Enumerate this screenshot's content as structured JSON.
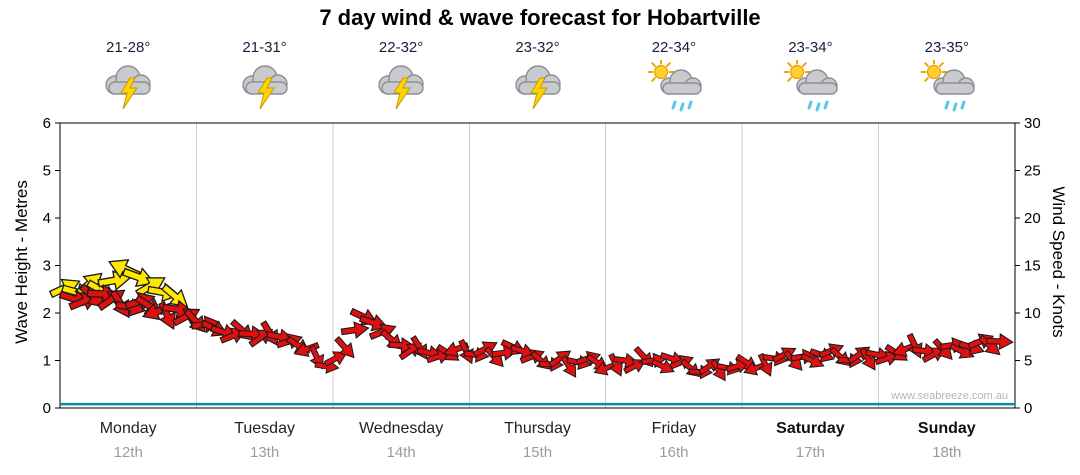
{
  "title": "7 day wind & wave forecast for Hobartville",
  "watermark": "www.seabreeze.com.au",
  "left_axis": {
    "label": "Wave Height - Metres",
    "min": 0,
    "max": 6,
    "ticks": [
      0,
      1,
      2,
      3,
      4,
      5,
      6
    ]
  },
  "right_axis": {
    "label": "Wind Speed - Knots",
    "min": 0,
    "max": 30,
    "ticks": [
      0,
      5,
      10,
      15,
      20,
      25,
      30
    ]
  },
  "days": [
    {
      "name": "Monday",
      "date": "12th",
      "temp": "21-28°",
      "icon": "storm",
      "weekend": false
    },
    {
      "name": "Tuesday",
      "date": "13th",
      "temp": "21-31°",
      "icon": "storm",
      "weekend": false
    },
    {
      "name": "Wednesday",
      "date": "14th",
      "temp": "22-32°",
      "icon": "storm",
      "weekend": false
    },
    {
      "name": "Thursday",
      "date": "15th",
      "temp": "23-32°",
      "icon": "storm",
      "weekend": false
    },
    {
      "name": "Friday",
      "date": "16th",
      "temp": "22-34°",
      "icon": "sun-shower",
      "weekend": false
    },
    {
      "name": "Saturday",
      "date": "17th",
      "temp": "23-34°",
      "icon": "sun-shower",
      "weekend": true
    },
    {
      "name": "Sunday",
      "date": "18th",
      "temp": "23-35°",
      "icon": "sun-shower",
      "weekend": true
    }
  ],
  "chart_data": {
    "type": "scatter",
    "title": "7 day wind & wave forecast for Hobartville",
    "x_axis": {
      "unit": "days",
      "range": [
        0,
        7
      ],
      "labels": [
        "Monday 12th",
        "Tuesday 13th",
        "Wednesday 14th",
        "Thursday 15th",
        "Friday 16th",
        "Saturday 17th",
        "Sunday 18th"
      ]
    },
    "y_left": {
      "label": "Wave Height - Metres",
      "range": [
        0,
        6
      ]
    },
    "y_right": {
      "label": "Wind Speed - Knots",
      "range": [
        0,
        30
      ]
    },
    "wave_height_m": 0.05,
    "wind_series": [
      {
        "name": "monday-stronger-gusts",
        "color": "#ffe800",
        "x_start": 0.03,
        "x_step": 0.09,
        "knots": [
          12.6,
          12.2,
          13.0,
          12.4,
          13.4,
          14.6,
          13.8,
          12.8,
          12.2,
          11.8
        ],
        "dirs_cycle": [
          -25,
          15,
          -40,
          30,
          -10,
          205,
          20,
          -30,
          10,
          40
        ]
      },
      {
        "name": "main-wind-trend",
        "color": "#e01010",
        "x_start": 0.1,
        "x_step": 0.0685,
        "knots": [
          11.5,
          11.2,
          11.8,
          12.0,
          11.4,
          11.0,
          10.6,
          11.2,
          10.8,
          10.2,
          9.8,
          10.4,
          9.6,
          9.2,
          8.8,
          8.4,
          8.0,
          7.6,
          8.2,
          7.8,
          7.4,
          7.9,
          7.5,
          7.0,
          6.6,
          6.2,
          5.4,
          4.4,
          5.2,
          6.4,
          8.2,
          9.6,
          9.0,
          8.0,
          7.2,
          6.6,
          6.0,
          6.4,
          5.8,
          5.4,
          5.8,
          6.2,
          6.0,
          5.6,
          6.2,
          5.4,
          5.8,
          6.4,
          6.0,
          5.4,
          5.0,
          4.6,
          5.2,
          4.4,
          4.8,
          5.2,
          4.8,
          4.2,
          4.6,
          5.0,
          4.4,
          5.4,
          5.0,
          4.4,
          5.2,
          4.8,
          4.2,
          3.8,
          4.4,
          4.0,
          4.2,
          4.4,
          4.8,
          4.2,
          4.6,
          5.2,
          5.6,
          5.0,
          5.4,
          5.0,
          5.6,
          6.0,
          5.4,
          5.0,
          5.6,
          5.2,
          5.6,
          5.2,
          5.8,
          6.2,
          6.6,
          6.0,
          5.6,
          6.2,
          6.6,
          6.0,
          6.4,
          7.0,
          6.6,
          7.0
        ],
        "dirs_cycle": [
          18,
          -22,
          42,
          3,
          -35,
          58,
          12,
          -18,
          33,
          160,
          65,
          8,
          -28,
          48,
          -8,
          25
        ]
      }
    ],
    "colors": {
      "wave_line": "#0d8aa0",
      "grid": "#cfcfcf",
      "axis": "#000000"
    },
    "legend": "none; arrow colour indicates wind strength band (yellow stronger, red lighter)"
  }
}
